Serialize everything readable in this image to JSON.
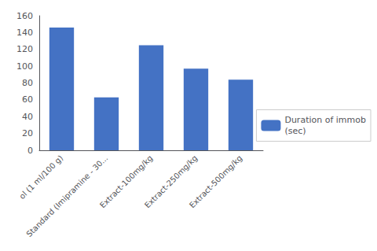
{
  "chart_data": {
    "type": "bar",
    "categories": [
      "ol (1 ml/100 g)",
      "Standard (Imipramine - 30...",
      "Extract-100mg/kg",
      "Extract-250mg/kg",
      "Extract-500mg/kg"
    ],
    "series": [
      {
        "name": "Duration of immob\n(sec)",
        "color": "#4472C4",
        "values": [
          146,
          63,
          125,
          97,
          84
        ]
      }
    ],
    "ylim": [
      0,
      160
    ],
    "yticks": [
      0,
      20,
      40,
      60,
      80,
      100,
      120,
      140,
      160
    ],
    "grid": false,
    "legend": "right"
  }
}
